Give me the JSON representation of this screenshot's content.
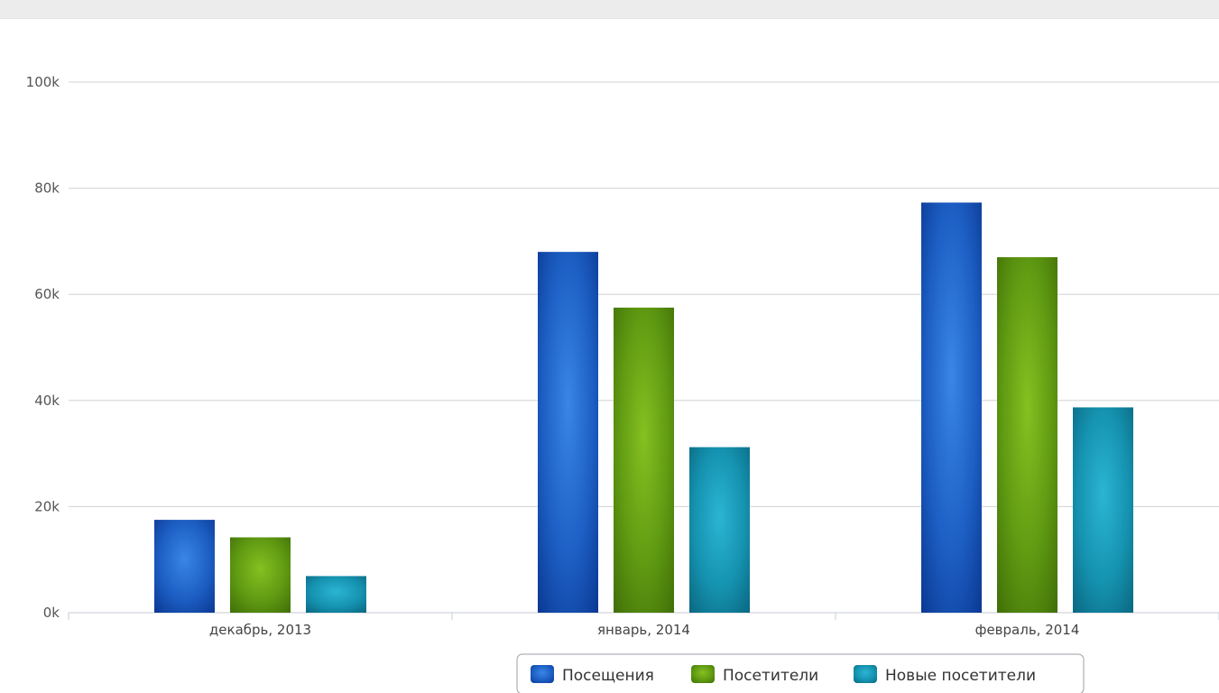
{
  "chart_data": {
    "type": "bar",
    "categories": [
      "декабрь, 2013",
      "январь, 2014",
      "февраль, 2014"
    ],
    "series": [
      {
        "name": "Посещения",
        "values": [
          17500,
          68000,
          77300
        ],
        "color": "#1d5fc4",
        "color_light": "#3a86e6",
        "color_dark": "#0a3791"
      },
      {
        "name": "Посетители",
        "values": [
          14200,
          57500,
          67000
        ],
        "color": "#5f9a12",
        "color_light": "#86c021",
        "color_dark": "#3f6d07"
      },
      {
        "name": "Новые посетители",
        "values": [
          6900,
          31200,
          38700
        ],
        "color": "#1593b0",
        "color_light": "#2bb5d3",
        "color_dark": "#0a6680"
      }
    ],
    "y_ticks": [
      "0k",
      "20k",
      "40k",
      "60k",
      "80k",
      "100k"
    ],
    "y_tick_values": [
      0,
      20000,
      40000,
      60000,
      80000,
      100000
    ],
    "ylim": [
      0,
      100000
    ],
    "grid": true,
    "legend": "bottom-center"
  }
}
